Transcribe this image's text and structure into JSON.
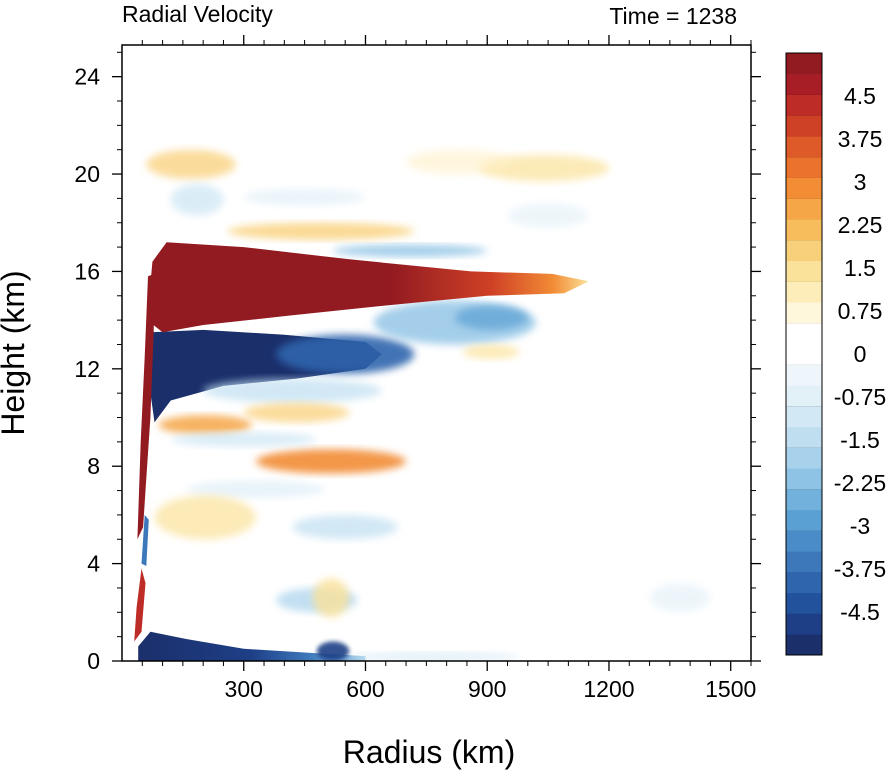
{
  "chart_data": {
    "type": "heatmap",
    "title_left": "Radial Velocity",
    "title_right": "Time = 1238",
    "xlabel": "Radius (km)",
    "ylabel": "Height (km)",
    "xlim": [
      0,
      1550
    ],
    "ylim": [
      0,
      25.3
    ],
    "x_ticks": [
      300,
      600,
      900,
      1200,
      1500
    ],
    "y_ticks": [
      0,
      4,
      8,
      12,
      16,
      20,
      24
    ],
    "x_tick_labels": [
      "300",
      "600",
      "900",
      "1200",
      "1500"
    ],
    "y_tick_labels": [
      "0",
      "4",
      "8",
      "12",
      "16",
      "20",
      "24"
    ],
    "colorbar": {
      "range": [
        -5.25,
        5.25
      ],
      "labels": [
        "4.5",
        "3.75",
        "3",
        "2.25",
        "1.5",
        "0.75",
        "0",
        "-0.75",
        "-1.5",
        "-2.25",
        "-3",
        "-3.75",
        "-4.5"
      ],
      "label_values": [
        4.5,
        3.75,
        3,
        2.25,
        1.5,
        0.75,
        0,
        -0.75,
        -1.5,
        -2.25,
        -3,
        -3.75,
        -4.5
      ],
      "colors": [
        "#1b2f6b",
        "#1e3f86",
        "#22529c",
        "#2f65ad",
        "#3d78bb",
        "#4a8cc8",
        "#5ba0d3",
        "#72b1dc",
        "#8ec3e5",
        "#a8d2ec",
        "#bfdff1",
        "#d2e8f5",
        "#e2f0f8",
        "#eff6fb",
        "#ffffff",
        "#ffffff",
        "#fff7dc",
        "#fdeeb9",
        "#fbe29a",
        "#f9d07a",
        "#f7bd5d",
        "#f5a646",
        "#f28c35",
        "#ea722d",
        "#de5a28",
        "#cf4126",
        "#bd2c26",
        "#a71e26",
        "#921a21"
      ]
    },
    "features": [
      {
        "name": "upper outflow jet",
        "sign": "positive",
        "x_range": [
          60,
          1150
        ],
        "y_range": [
          13.5,
          17.2
        ],
        "peak": 5.25
      },
      {
        "name": "inflow layer below outflow",
        "sign": "negative",
        "x_range": [
          70,
          640
        ],
        "y_range": [
          10.8,
          13.6
        ],
        "peak": -5.25
      },
      {
        "name": "eyewall outflow column",
        "sign": "positive",
        "x_range": [
          40,
          80
        ],
        "y_range": [
          5,
          16
        ],
        "peak": 5.25
      },
      {
        "name": "boundary layer inflow",
        "sign": "negative",
        "x_range": [
          40,
          600
        ],
        "y_range": [
          0,
          1.2
        ],
        "peak": -5.25
      },
      {
        "name": "mid-level outflow band",
        "sign": "positive",
        "x_range": [
          320,
          700
        ],
        "y_range": [
          7.6,
          8.8
        ],
        "peak": 2.6
      },
      {
        "name": "tropopause layer weak outflow",
        "sign": "positive",
        "x_range": [
          60,
          1200
        ],
        "y_range": [
          19.8,
          21
        ],
        "peak": 1.2
      }
    ]
  }
}
